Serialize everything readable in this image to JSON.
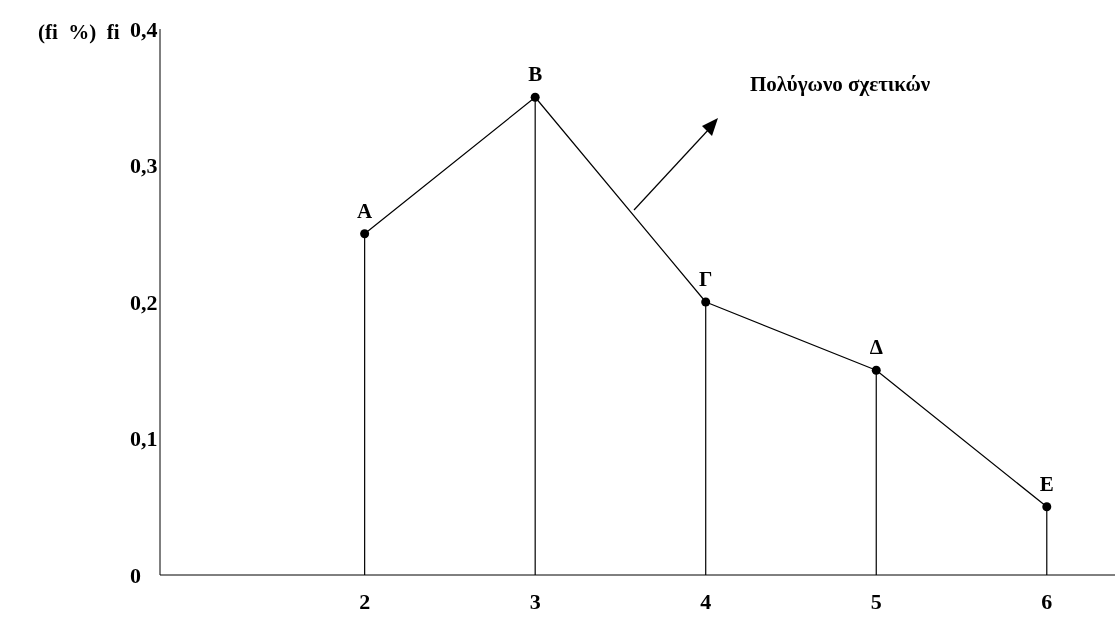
{
  "chart_data": {
    "type": "line",
    "ylabel": "(fi  %)  fi",
    "x": [
      2,
      3,
      4,
      5,
      6
    ],
    "series": [
      {
        "type": "lollipop",
        "color": "#000000",
        "values": [
          0.25,
          0.35,
          0.2,
          0.15,
          0.05
        ]
      },
      {
        "color": "#000000",
        "marker": "none",
        "values": [
          0.25,
          0.35,
          0.2,
          0.15,
          0.05
        ]
      }
    ],
    "xlim": [
      0.8,
      6.4
    ],
    "xticks": [
      2,
      3,
      4,
      5,
      6
    ],
    "ylim": [
      0,
      0.4
    ],
    "yticks": [
      0,
      {
        "value": 0.1,
        "label": "0,1"
      },
      {
        "value": 0.2,
        "label": "0,2"
      },
      {
        "value": 0.3,
        "label": "0,3"
      },
      {
        "value": 0.4,
        "label": "0,4"
      }
    ],
    "marker": "circle",
    "line_style": "solid",
    "annotations": [
      {
        "text": "Α",
        "x": 2,
        "y": 0.25
      },
      {
        "text": "Β",
        "x": 3,
        "y": 0.35
      },
      {
        "text": "Γ",
        "x": 4,
        "y": 0.2
      },
      {
        "text": "Δ",
        "x": 5,
        "y": 0.15
      },
      {
        "text": "Ε",
        "x": 6,
        "y": 0.05
      },
      "Πολύγωνο σχετικών"
    ]
  }
}
